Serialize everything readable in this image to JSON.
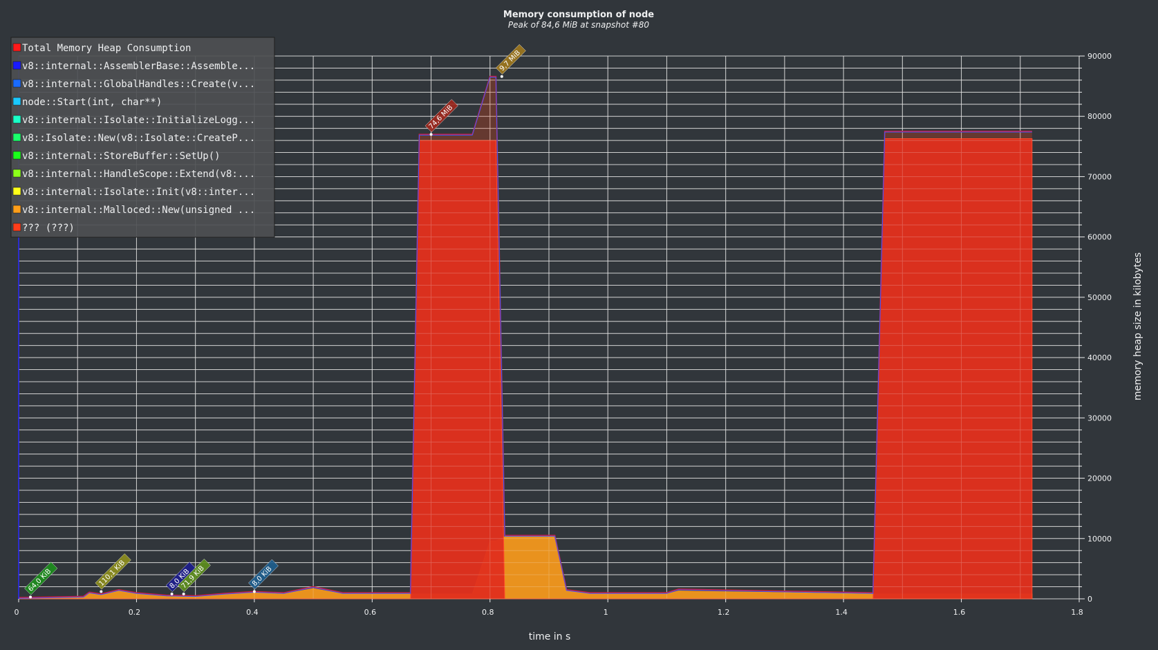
{
  "chart_data": {
    "type": "area",
    "title": "Memory consumption of node",
    "subtitle": "Peak of 84,6 MiB at snapshot #80",
    "xlabel": "time in s",
    "ylabel": "memory heap size in kilobytes",
    "xlim": [
      0,
      1.8
    ],
    "ylim": [
      0,
      90000
    ],
    "x_ticks": [
      "0",
      "0.2",
      "0.4",
      "0.6",
      "0.8",
      "1",
      "1.2",
      "1.4",
      "1.6",
      "1.8"
    ],
    "y_ticks": [
      "0",
      "10000",
      "20000",
      "30000",
      "40000",
      "50000",
      "60000",
      "70000",
      "80000",
      "90000"
    ],
    "grid": true,
    "legend_position": "top-left",
    "legend": [
      {
        "name": "Total Memory Heap Consumption",
        "color": "#ff1a1a"
      },
      {
        "name": "v8::internal::AssemblerBase::Assemble...",
        "color": "#1a1aff"
      },
      {
        "name": "v8::internal::GlobalHandles::Create(v...",
        "color": "#1a6bff"
      },
      {
        "name": "node::Start(int, char**)",
        "color": "#1ac8ff"
      },
      {
        "name": "v8::internal::Isolate::InitializeLogg...",
        "color": "#1affc8"
      },
      {
        "name": "v8::Isolate::New(v8::Isolate::CreateP...",
        "color": "#1aff6b"
      },
      {
        "name": "v8::internal::StoreBuffer::SetUp()",
        "color": "#1aff1a"
      },
      {
        "name": "v8::internal::HandleScope::Extend(v8:...",
        "color": "#8cff1a"
      },
      {
        "name": "v8::internal::Isolate::Init(v8::inter...",
        "color": "#ffff1a"
      },
      {
        "name": "v8::internal::Malloced::New(unsigned ...",
        "color": "#ff9e1a"
      },
      {
        "name": "??? (???)",
        "color": "#ff3d1a"
      }
    ],
    "series": [
      {
        "name": "Total Memory Heap Consumption",
        "x": [
          0,
          0.11,
          0.12,
          0.14,
          0.17,
          0.2,
          0.25,
          0.3,
          0.35,
          0.4,
          0.45,
          0.5,
          0.55,
          0.6,
          0.665,
          0.68,
          0.77,
          0.8,
          0.81,
          0.825,
          0.91,
          0.93,
          0.97,
          1.1,
          1.12,
          1.45,
          1.47,
          1.72
        ],
        "y": [
          200,
          400,
          1100,
          800,
          1500,
          1000,
          600,
          500,
          900,
          1200,
          1000,
          2000,
          1000,
          1000,
          1000,
          77000,
          77000,
          86600,
          86600,
          10500,
          10500,
          1500,
          1000,
          1000,
          1600,
          1000,
          77500,
          77500
        ]
      },
      {
        "name": "v8::internal::Malloced::New(unsigned ...",
        "x": [
          0,
          0.11,
          0.12,
          0.14,
          0.17,
          0.2,
          0.25,
          0.3,
          0.35,
          0.4,
          0.45,
          0.5,
          0.55,
          0.6,
          0.665,
          0.68,
          0.77,
          0.8,
          0.81,
          0.825,
          0.91,
          0.93,
          0.97,
          1.1,
          1.12,
          1.45,
          1.47,
          1.72
        ],
        "y": [
          100,
          300,
          900,
          600,
          1300,
          800,
          400,
          300,
          700,
          1000,
          800,
          1700,
          800,
          800,
          800,
          800,
          800,
          9600,
          9600,
          10300,
          10300,
          1300,
          800,
          800,
          1300,
          800,
          800,
          800
        ]
      },
      {
        "name": "??? (???)",
        "x": [
          0,
          0.665,
          0.68,
          0.81,
          0.825,
          1.45,
          1.47,
          1.72
        ],
        "y": [
          0,
          0,
          76000,
          76000,
          0,
          0,
          76300,
          76300
        ]
      }
    ],
    "annotations": [
      {
        "text": "64,0 KiB",
        "x": 0.02,
        "y": 300,
        "color": "#1e8f1e"
      },
      {
        "text": "110,1 KiB",
        "x": 0.14,
        "y": 1200,
        "color": "#8f8f1e"
      },
      {
        "text": "8,0 KiB",
        "x": 0.26,
        "y": 800,
        "color": "#1e1e8f"
      },
      {
        "text": "71,9 KiB",
        "x": 0.28,
        "y": 800,
        "color": "#5e8f1e"
      },
      {
        "text": "8,0 KiB",
        "x": 0.4,
        "y": 1200,
        "color": "#1e5e8f"
      },
      {
        "text": "74,6 MiB",
        "x": 0.7,
        "y": 77000,
        "color": "#a0281e"
      },
      {
        "text": "9,7 MiB",
        "x": 0.82,
        "y": 86600,
        "color": "#a0781e"
      }
    ]
  }
}
